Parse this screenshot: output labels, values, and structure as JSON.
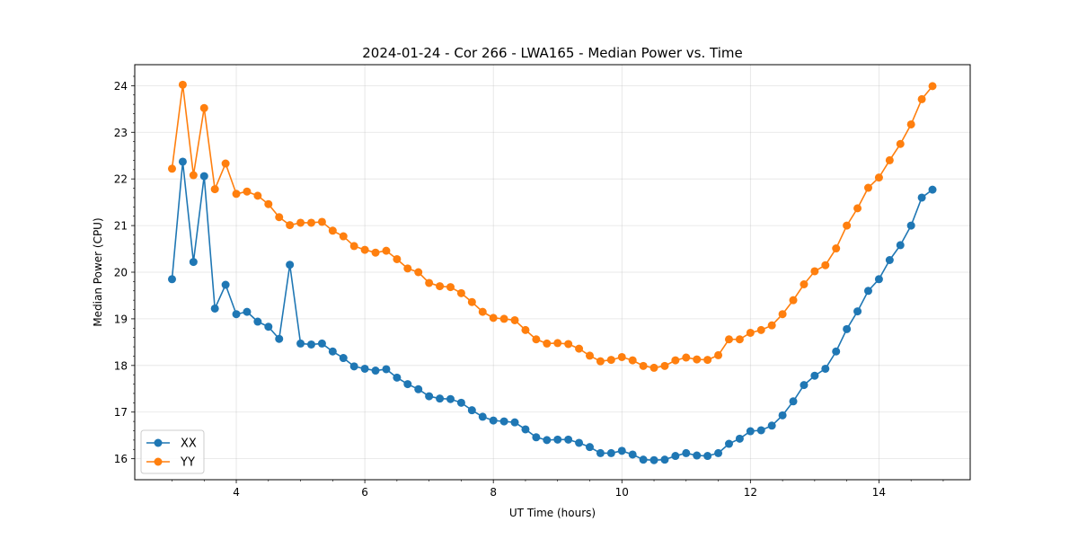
{
  "chart_data": {
    "type": "line",
    "title": "2024-01-24 - Cor 266 - LWA165 - Median Power vs. Time",
    "xlabel": "UT Time (hours)",
    "ylabel": "Median Power (CPU)",
    "xlim": [
      2.42,
      15.42
    ],
    "ylim": [
      15.55,
      24.45
    ],
    "xticks": [
      4,
      6,
      8,
      10,
      12,
      14
    ],
    "xtick_labels": [
      "4",
      "6",
      "8",
      "10",
      "12",
      "14"
    ],
    "yticks": [
      16,
      17,
      18,
      19,
      20,
      21,
      22,
      23,
      24
    ],
    "ytick_labels": [
      "16",
      "17",
      "18",
      "19",
      "20",
      "21",
      "22",
      "23",
      "24"
    ],
    "grid": true,
    "legend": "lower-left",
    "x": [
      3.0,
      3.1667,
      3.3333,
      3.5,
      3.6667,
      3.8333,
      4.0,
      4.1667,
      4.3333,
      4.5,
      4.6667,
      4.8333,
      5.0,
      5.1667,
      5.3333,
      5.5,
      5.6667,
      5.8333,
      6.0,
      6.1667,
      6.3333,
      6.5,
      6.6667,
      6.8333,
      7.0,
      7.1667,
      7.3333,
      7.5,
      7.6667,
      7.8333,
      8.0,
      8.1667,
      8.3333,
      8.5,
      8.6667,
      8.8333,
      9.0,
      9.1667,
      9.3333,
      9.5,
      9.6667,
      9.8333,
      10.0,
      10.1667,
      10.3333,
      10.5,
      10.6667,
      10.8333,
      11.0,
      11.1667,
      11.3333,
      11.5,
      11.6667,
      11.8333,
      12.0,
      12.1667,
      12.3333,
      12.5,
      12.6667,
      12.8333,
      13.0,
      13.1667,
      13.3333,
      13.5,
      13.6667,
      13.8333,
      14.0,
      14.1667,
      14.3333,
      14.5,
      14.6667,
      14.8333
    ],
    "series": [
      {
        "name": "XX",
        "color": "#1f77b4",
        "values": [
          19.85,
          22.37,
          20.22,
          22.06,
          19.22,
          19.73,
          19.1,
          19.15,
          18.94,
          18.83,
          18.57,
          20.16,
          18.47,
          18.45,
          18.47,
          18.3,
          18.16,
          17.98,
          17.93,
          17.89,
          17.92,
          17.74,
          17.6,
          17.49,
          17.34,
          17.29,
          17.28,
          17.2,
          17.04,
          16.9,
          16.82,
          16.8,
          16.78,
          16.63,
          16.46,
          16.4,
          16.41,
          16.41,
          16.34,
          16.25,
          16.12,
          16.12,
          16.17,
          16.09,
          15.98,
          15.97,
          15.98,
          16.06,
          16.12,
          16.07,
          16.06,
          16.12,
          16.32,
          16.43,
          16.59,
          16.61,
          16.71,
          16.93,
          17.23,
          17.58,
          17.78,
          17.93,
          18.3,
          18.78,
          19.16,
          19.6,
          19.85,
          20.26,
          20.58,
          21.0,
          21.6,
          21.77
        ]
      },
      {
        "name": "YY",
        "color": "#ff7f0e",
        "values": [
          22.22,
          24.02,
          22.08,
          23.52,
          21.78,
          22.33,
          21.68,
          21.73,
          21.64,
          21.46,
          21.18,
          21.01,
          21.06,
          21.06,
          21.08,
          20.89,
          20.77,
          20.56,
          20.48,
          20.42,
          20.46,
          20.28,
          20.08,
          20.0,
          19.77,
          19.7,
          19.68,
          19.55,
          19.36,
          19.15,
          19.02,
          19.0,
          18.97,
          18.76,
          18.56,
          18.47,
          18.48,
          18.46,
          18.36,
          18.21,
          18.09,
          18.12,
          18.18,
          18.11,
          17.99,
          17.95,
          17.99,
          18.11,
          18.17,
          18.13,
          18.12,
          18.22,
          18.56,
          18.56,
          18.7,
          18.76,
          18.86,
          19.1,
          19.4,
          19.74,
          20.02,
          20.15,
          20.51,
          21.0,
          21.37,
          21.81,
          22.03,
          22.4,
          22.75,
          23.17,
          23.71,
          23.99
        ]
      }
    ]
  }
}
